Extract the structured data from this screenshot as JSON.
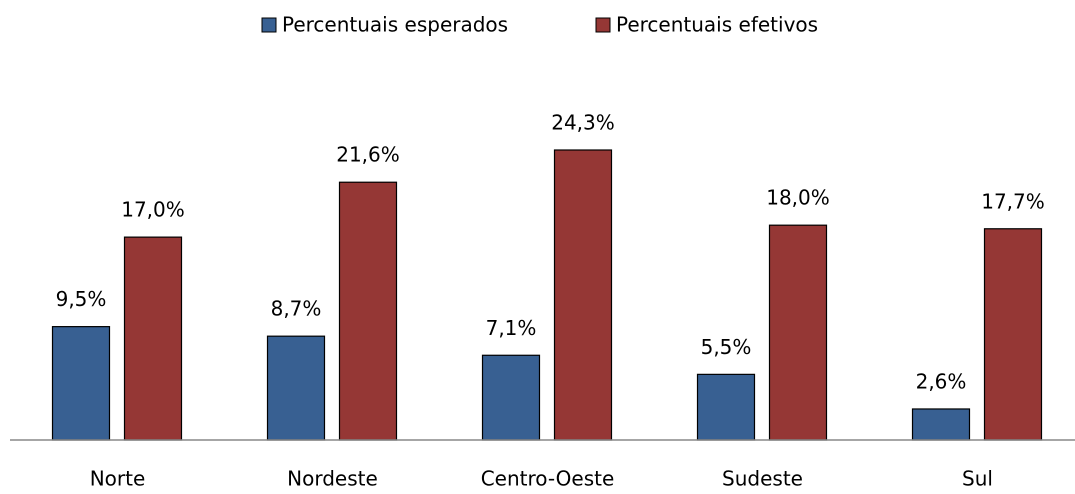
{
  "chart_data": {
    "type": "bar",
    "categories": [
      "Norte",
      "Nordeste",
      "Centro-Oeste",
      "Sudeste",
      "Sul"
    ],
    "series": [
      {
        "name": "Percentuais esperados",
        "color": "#386092",
        "values": [
          9.5,
          8.7,
          7.1,
          5.5,
          2.6
        ],
        "value_labels": [
          "9,5%",
          "8,7%",
          "7,1%",
          "5,5%",
          "2,6%"
        ]
      },
      {
        "name": "Percentuais efetivos",
        "color": "#953735",
        "values": [
          17.0,
          21.6,
          24.3,
          18.0,
          17.7
        ],
        "value_labels": [
          "17,0%",
          "21,6%",
          "24,3%",
          "18,0%",
          "17,7%"
        ]
      }
    ],
    "legend": "top"
  }
}
